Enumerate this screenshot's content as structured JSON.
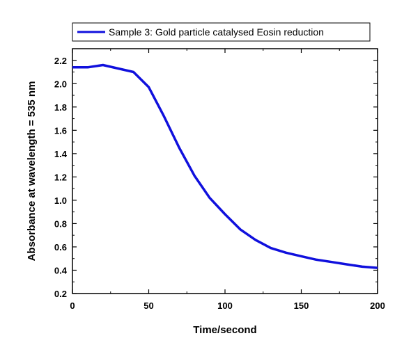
{
  "chart_data": {
    "type": "line",
    "xlabel": "Time/second",
    "ylabel": "Absorbance at wavelength = 535 nm",
    "xlim": [
      0,
      200
    ],
    "ylim": [
      0.2,
      2.3
    ],
    "xticks": [
      0,
      50,
      100,
      150,
      200
    ],
    "yticks": [
      0.2,
      0.4,
      0.6,
      0.8,
      1.0,
      1.2,
      1.4,
      1.6,
      1.8,
      2.0,
      2.2
    ],
    "ytick_labels": [
      "0.2",
      "0.4",
      "0.6",
      "0.8",
      "1.0",
      "1.2",
      "1.4",
      "1.6",
      "1.8",
      "2.0",
      "2.2"
    ],
    "xtick_labels": [
      "0",
      "50",
      "100",
      "150",
      "200"
    ],
    "grid": false,
    "legend_position": "top",
    "series": [
      {
        "name": "Sample 3: Gold particle catalysed Eosin reduction",
        "color": "#1010dd",
        "x": [
          0,
          10,
          20,
          30,
          40,
          50,
          60,
          70,
          80,
          90,
          100,
          110,
          120,
          130,
          140,
          150,
          160,
          170,
          180,
          190,
          200
        ],
        "y": [
          2.14,
          2.14,
          2.16,
          2.13,
          2.1,
          1.97,
          1.72,
          1.45,
          1.21,
          1.02,
          0.88,
          0.75,
          0.66,
          0.59,
          0.55,
          0.52,
          0.49,
          0.47,
          0.45,
          0.43,
          0.42
        ]
      }
    ]
  }
}
